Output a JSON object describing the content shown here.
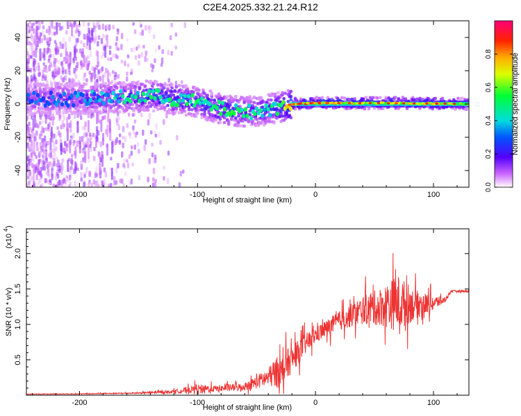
{
  "title": "C2E4.2025.332.21.24.R12",
  "chart_data": [
    {
      "type": "heatmap",
      "xlabel": "Height of straight line (km)",
      "ylabel": "Frequency (Hz)",
      "xlim": [
        -245,
        130
      ],
      "ylim": [
        -50,
        50
      ],
      "x_ticks": [
        -200,
        -100,
        0,
        100
      ],
      "x_tick_labels": [
        "-200",
        "-100",
        "0",
        "100"
      ],
      "y_ticks": [
        -40,
        -20,
        0,
        20,
        40
      ],
      "y_tick_labels": [
        "-40",
        "-20",
        "0",
        "20",
        "40"
      ],
      "colorbar": {
        "label": "Normalized spectral amplitude",
        "range": [
          0,
          1
        ],
        "ticks": [
          0.0,
          0.2,
          0.4,
          0.6,
          0.8
        ],
        "tick_labels": [
          "0.0",
          "0.2",
          "0.4",
          "0.6",
          "0.8"
        ],
        "colormap": "rainbow"
      },
      "ridge": [
        {
          "x": -245,
          "y": 3,
          "amp": 0.3
        },
        {
          "x": -200,
          "y": 3,
          "amp": 0.35
        },
        {
          "x": -160,
          "y": 4,
          "amp": 0.45
        },
        {
          "x": -140,
          "y": 5,
          "amp": 0.5
        },
        {
          "x": -120,
          "y": 3,
          "amp": 0.5
        },
        {
          "x": -100,
          "y": 1,
          "amp": 0.5
        },
        {
          "x": -80,
          "y": -3,
          "amp": 0.55
        },
        {
          "x": -60,
          "y": -5,
          "amp": 0.5
        },
        {
          "x": -45,
          "y": -4,
          "amp": 0.45
        },
        {
          "x": -30,
          "y": -2,
          "amp": 0.55
        },
        {
          "x": -20,
          "y": 0,
          "amp": 0.85
        },
        {
          "x": 0,
          "y": 0.5,
          "amp": 0.8
        },
        {
          "x": 50,
          "y": 0.5,
          "amp": 0.7
        },
        {
          "x": 100,
          "y": 0.3,
          "amp": 0.75
        },
        {
          "x": 130,
          "y": 0,
          "amp": 0.6
        }
      ]
    },
    {
      "type": "line",
      "xlabel": "Height of straight line (km)",
      "ylabel": "SNR (10 * v/v)",
      "y_scale_label": "(x10",
      "y_scale_exponent": "4",
      "xlim": [
        -245,
        130
      ],
      "ylim": [
        0,
        23500
      ],
      "x_ticks": [
        -200,
        -100,
        0,
        100
      ],
      "x_tick_labels": [
        "-200",
        "-100",
        "0",
        "100"
      ],
      "y_ticks": [
        5000,
        10000,
        15000,
        20000
      ],
      "y_tick_labels": [
        "0.5",
        "1.0",
        "1.5",
        "2.0"
      ],
      "series": [
        {
          "color": "#ee3333",
          "envelope": [
            {
              "x": -245,
              "base": 150,
              "amp": 80
            },
            {
              "x": -200,
              "base": 180,
              "amp": 120
            },
            {
              "x": -150,
              "base": 300,
              "amp": 200
            },
            {
              "x": -120,
              "base": 500,
              "amp": 500
            },
            {
              "x": -100,
              "base": 900,
              "amp": 1400
            },
            {
              "x": -85,
              "base": 900,
              "amp": 1000
            },
            {
              "x": -60,
              "base": 1200,
              "amp": 1200
            },
            {
              "x": -40,
              "base": 2500,
              "amp": 3000
            },
            {
              "x": -30,
              "base": 3500,
              "amp": 5500
            },
            {
              "x": -20,
              "base": 5000,
              "amp": 4000
            },
            {
              "x": -10,
              "base": 7000,
              "amp": 3500
            },
            {
              "x": 0,
              "base": 8500,
              "amp": 2500
            },
            {
              "x": 20,
              "base": 10500,
              "amp": 3000
            },
            {
              "x": 40,
              "base": 12000,
              "amp": 4500
            },
            {
              "x": 55,
              "base": 12500,
              "amp": 6000
            },
            {
              "x": 70,
              "base": 13000,
              "amp": 9000
            },
            {
              "x": 85,
              "base": 12800,
              "amp": 4500
            },
            {
              "x": 100,
              "base": 13000,
              "amp": 2500
            },
            {
              "x": 110,
              "base": 13500,
              "amp": 800
            },
            {
              "x": 115,
              "base": 14700,
              "amp": 300
            },
            {
              "x": 130,
              "base": 14700,
              "amp": 300
            }
          ]
        }
      ]
    }
  ]
}
